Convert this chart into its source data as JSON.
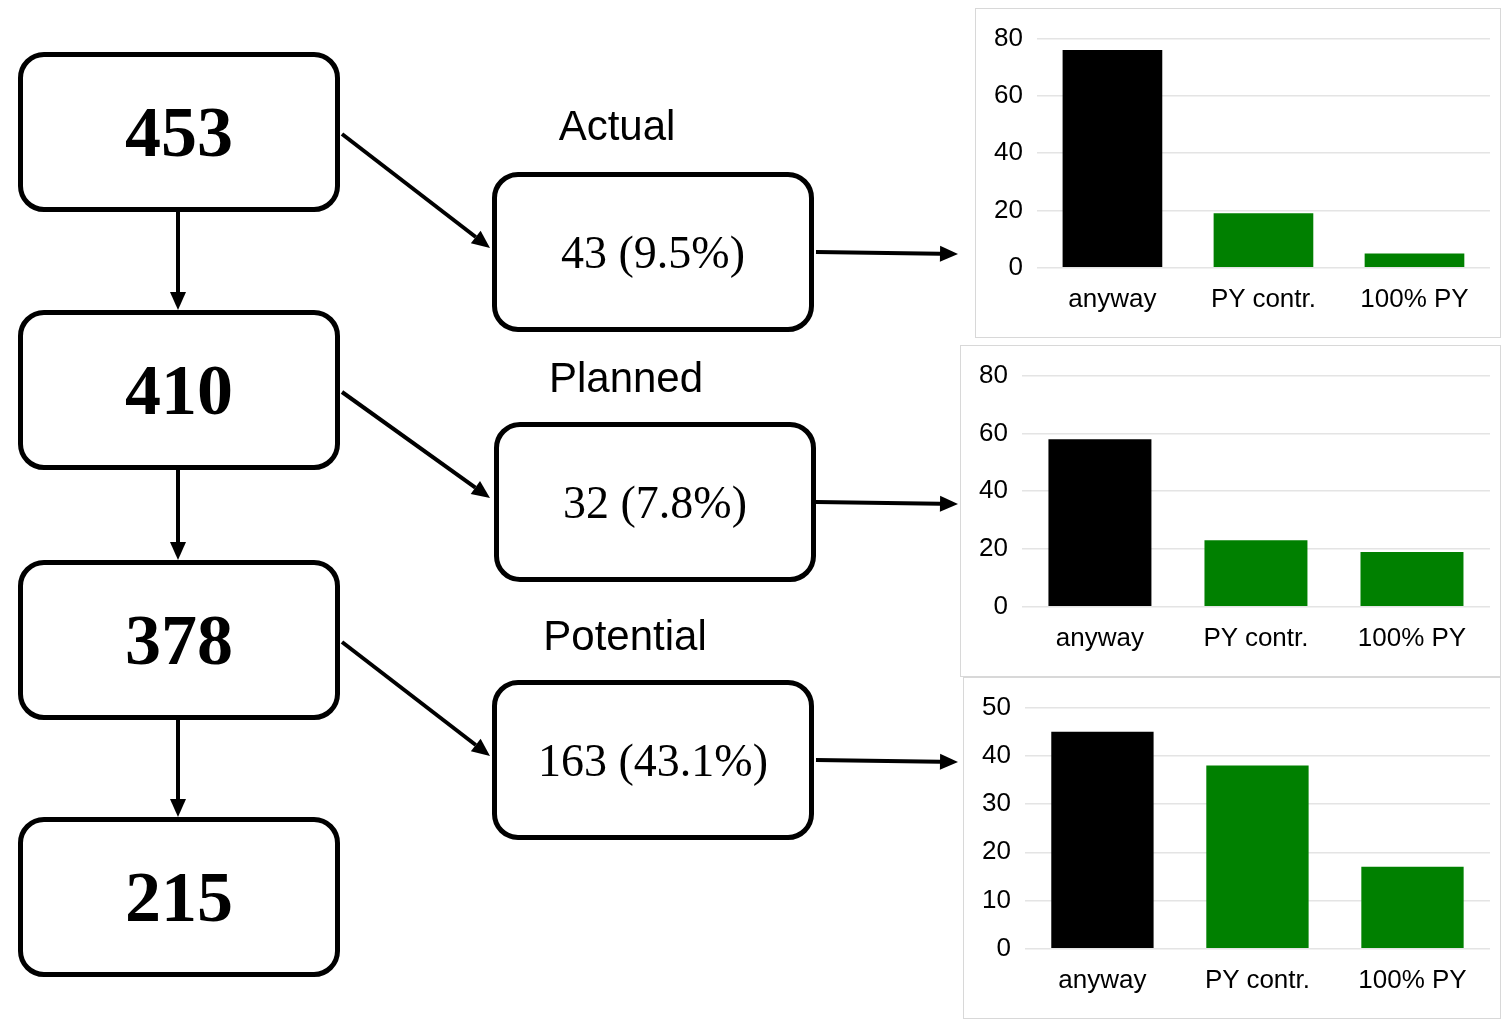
{
  "chart_data": [
    {
      "type": "other",
      "annotations": [
        "453",
        "410",
        "378",
        "215",
        "Actual",
        "43 (9.5%)",
        "Planned",
        "32 (7.8%)",
        "Potential",
        "163 (43.1%)"
      ]
    },
    {
      "type": "bar",
      "categories": [
        "anyway",
        "PY contr.",
        "100% PY"
      ],
      "values": [
        76,
        19,
        5
      ],
      "colors": [
        "#000000",
        "#008000",
        "#008000"
      ],
      "ylim": [
        0,
        80
      ],
      "yticks": [
        0,
        20,
        40,
        60,
        80
      ],
      "grid": "y"
    },
    {
      "type": "bar",
      "categories": [
        "anyway",
        "PY contr.",
        "100% PY"
      ],
      "values": [
        58,
        23,
        19
      ],
      "colors": [
        "#000000",
        "#008000",
        "#008000"
      ],
      "ylim": [
        0,
        80
      ],
      "yticks": [
        0,
        20,
        40,
        60,
        80
      ],
      "grid": "y"
    },
    {
      "type": "bar",
      "categories": [
        "anyway",
        "PY contr.",
        "100% PY"
      ],
      "values": [
        45,
        38,
        17
      ],
      "colors": [
        "#000000",
        "#008000",
        "#008000"
      ],
      "ylim": [
        0,
        50
      ],
      "yticks": [
        0,
        10,
        20,
        30,
        40,
        50
      ],
      "grid": "y"
    }
  ]
}
